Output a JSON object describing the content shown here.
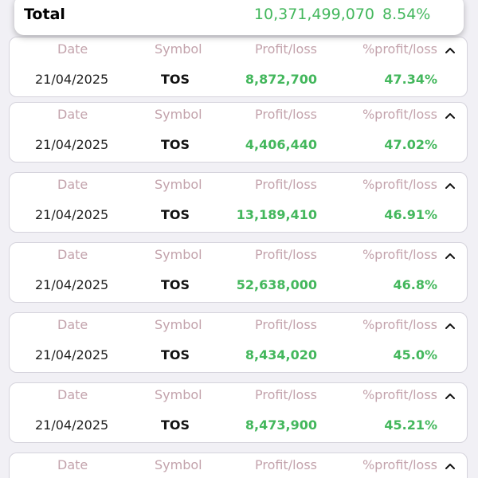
{
  "summary": {
    "label": "Total",
    "amount": "10,371,499,070",
    "percent": "8.54%"
  },
  "columns": {
    "date": "Date",
    "symbol": "Symbol",
    "profit": "Profit/loss",
    "percent": "%profit/loss"
  },
  "rows": [
    {
      "date": "21/04/2025",
      "symbol": "TOS",
      "profit": "8,872,700",
      "percent": "47.34%"
    },
    {
      "date": "21/04/2025",
      "symbol": "TOS",
      "profit": "4,406,440",
      "percent": "47.02%"
    },
    {
      "date": "21/04/2025",
      "symbol": "TOS",
      "profit": "13,189,410",
      "percent": "46.91%"
    },
    {
      "date": "21/04/2025",
      "symbol": "TOS",
      "profit": "52,638,000",
      "percent": "46.8%"
    },
    {
      "date": "21/04/2025",
      "symbol": "TOS",
      "profit": "8,434,020",
      "percent": "45.0%"
    },
    {
      "date": "21/04/2025",
      "symbol": "TOS",
      "profit": "8,473,900",
      "percent": "45.21%"
    },
    {
      "date": "",
      "symbol": "",
      "profit": "",
      "percent": ""
    }
  ],
  "icons": {
    "row_toggle": "chevron-up-icon"
  },
  "colors": {
    "positive": "#43b75c",
    "column_header": "#c3a3ac",
    "background": "#f1f0f5"
  }
}
